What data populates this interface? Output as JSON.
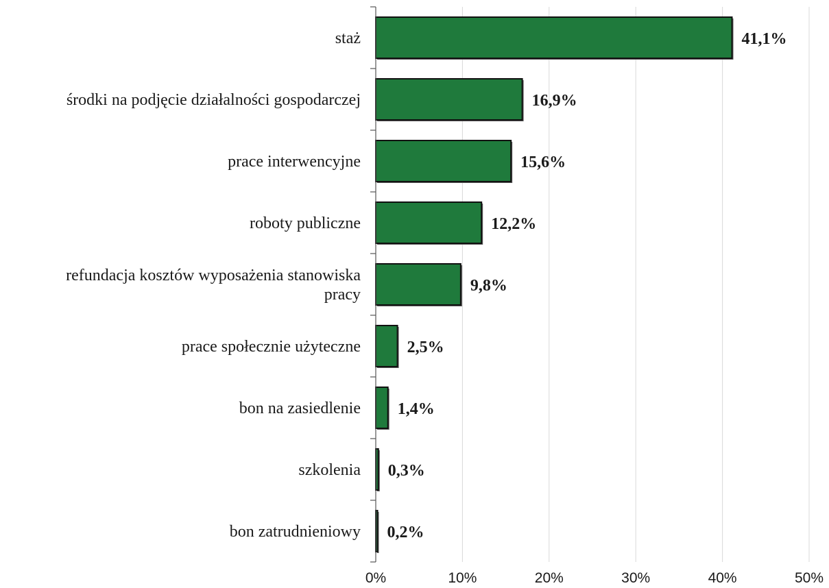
{
  "chart_data": {
    "type": "bar",
    "orientation": "horizontal",
    "categories": [
      [
        "staż"
      ],
      [
        "środki na podjęcie działalności gospodarczej"
      ],
      [
        "prace interwencyjne"
      ],
      [
        "roboty publiczne"
      ],
      [
        "refundacja kosztów wyposażenia stanowiska",
        "pracy"
      ],
      [
        "prace społecznie użyteczne"
      ],
      [
        "bon na zasiedlenie"
      ],
      [
        "szkolenia"
      ],
      [
        "bon zatrudnieniowy"
      ]
    ],
    "values": [
      41.1,
      16.9,
      15.6,
      12.2,
      9.8,
      2.5,
      1.4,
      0.3,
      0.2
    ],
    "value_labels": [
      "41,1%",
      "16,9%",
      "15,6%",
      "12,2%",
      "9,8%",
      "2,5%",
      "1,4%",
      "0,3%",
      "0,2%"
    ],
    "xlim": [
      0,
      50
    ],
    "x_ticks": [
      0,
      10,
      20,
      30,
      40,
      50
    ],
    "x_tick_labels": [
      "0%",
      "10%",
      "20%",
      "30%",
      "40%",
      "50%"
    ],
    "grid": "vertical",
    "bar_color": "#1f7a3c",
    "bar_edge_color": "#111111",
    "grid_color": "#d8d8d8",
    "title": "",
    "xlabel": "",
    "ylabel": ""
  }
}
